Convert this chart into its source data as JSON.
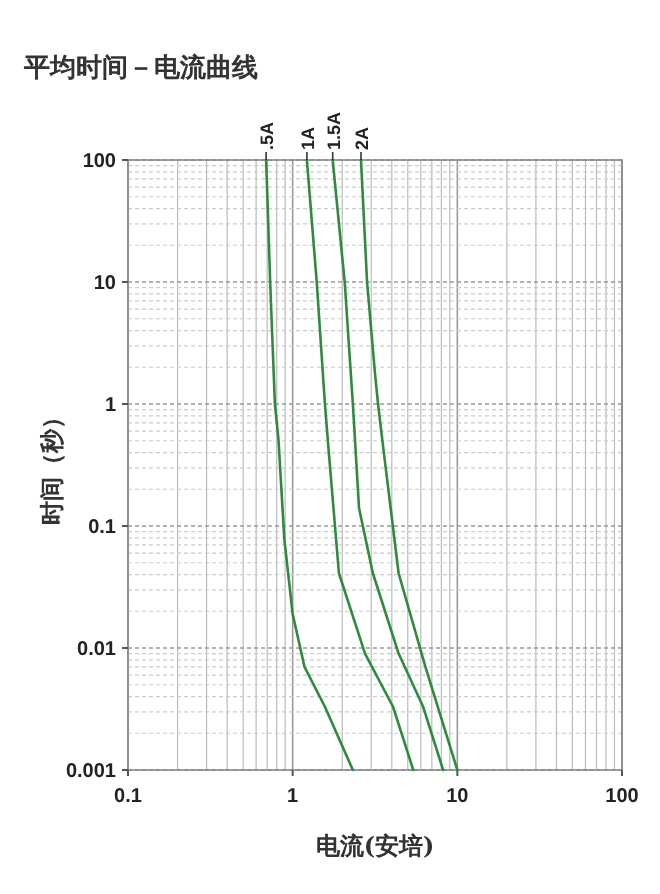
{
  "chart_data": {
    "type": "line",
    "title": "平均时间－电流曲线",
    "xlabel": "电流(安培)",
    "ylabel": "时间（秒）",
    "log": "xy",
    "grid": true,
    "xlim": [
      0.1,
      100
    ],
    "ylim": [
      0.001,
      100
    ],
    "xticks": [
      0.1,
      1,
      10,
      100
    ],
    "yticks": [
      0.001,
      0.01,
      0.1,
      1,
      10,
      100
    ],
    "series": [
      {
        "name": ".5A",
        "color": "#2e8b3e",
        "x": [
          0.69,
          0.73,
          0.78,
          0.82,
          0.89,
          1.0,
          1.18,
          1.57,
          2.32
        ],
        "values": [
          100,
          10,
          1,
          0.51,
          0.078,
          0.019,
          0.007,
          0.0033,
          0.001
        ]
      },
      {
        "name": "1A",
        "color": "#2e8b3e",
        "x": [
          1.22,
          1.4,
          1.57,
          1.66,
          1.91,
          2.75,
          4.07,
          5.4
        ],
        "values": [
          100,
          10,
          1,
          0.39,
          0.041,
          0.009,
          0.0033,
          0.001
        ]
      },
      {
        "name": "1.5A",
        "color": "#2e8b3e",
        "x": [
          1.75,
          2.07,
          2.32,
          2.53,
          3.07,
          4.4,
          6.2,
          8.2
        ],
        "values": [
          100,
          10,
          1,
          0.14,
          0.041,
          0.009,
          0.0033,
          0.001
        ]
      },
      {
        "name": "2A",
        "color": "#2e8b3e",
        "x": [
          2.6,
          2.83,
          3.16,
          3.3,
          3.5,
          4.4,
          6.4,
          10
        ],
        "values": [
          100,
          10,
          1.8,
          1,
          0.51,
          0.041,
          0.007,
          0.001
        ]
      }
    ]
  }
}
